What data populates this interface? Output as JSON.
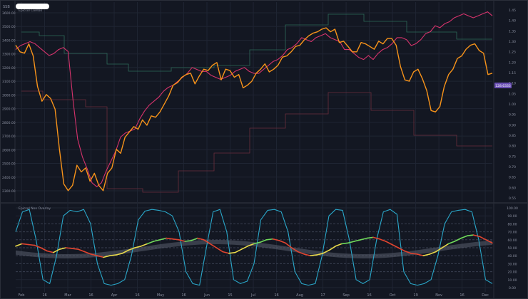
{
  "header": {
    "symbol": "SSB",
    "indicator_label": "Epicsol Combo"
  },
  "lower_panel": {
    "label": "Epicsol Non Overlay"
  },
  "price_label": "128.6333",
  "colors": {
    "background": "#131722",
    "grid": "#1f2533",
    "price": "#f7931a",
    "ratio": "#d6336c",
    "step_green": "#2e6b5a",
    "step_red": "#6b2e3c",
    "osc_cyan": "#2aa7c9",
    "osc_green": "#6fd95a",
    "osc_red": "#e0442f",
    "osc_yellow": "#e8d94a",
    "band": "#5a5f6e",
    "axis_text": "#8b90a0",
    "price_tag_bg": "#6a4fb3"
  },
  "chart_data": [
    {
      "type": "line",
      "title": "Epicsol Combo",
      "x_ticks": [
        "Feb",
        "16",
        "Mar",
        "16",
        "Apr",
        "16",
        "May",
        "16",
        "Jun",
        "15",
        "Jul",
        "16",
        "Aug",
        "17",
        "Sep",
        "16",
        "Oct",
        "19",
        "Nov",
        "16",
        "Dec"
      ],
      "y_left_ticks": [
        "3600.00",
        "3500.00",
        "3400.00",
        "3300.00",
        "3200.00",
        "3100.00",
        "3000.00",
        "2900.00",
        "2800.00",
        "2700.00",
        "2600.00",
        "2500.00",
        "2400.00",
        "2300.00"
      ],
      "y_right_ticks": [
        "1.45",
        "1.40",
        "1.35",
        "1.30",
        "1.25",
        "1.20",
        "1.15",
        "1.10",
        "1.05",
        "1.00",
        "0.95",
        "0.90",
        "0.85",
        "0.80",
        "0.75",
        "0.70",
        "0.65",
        "0.60",
        "0.55"
      ],
      "ylim_left": [
        2230,
        3660
      ],
      "series": [
        {
          "color": "#f7931a",
          "axis": "left",
          "values": [
            3380,
            3330,
            3320,
            3390,
            3300,
            3070,
            2960,
            3010,
            2980,
            2900,
            2600,
            2340,
            2290,
            2330,
            2480,
            2430,
            2460,
            2360,
            2420,
            2330,
            2290,
            2420,
            2460,
            2600,
            2570,
            2690,
            2730,
            2770,
            2750,
            2820,
            2780,
            2850,
            2840,
            2880,
            2940,
            3000,
            3080,
            3100,
            3140,
            3160,
            3170,
            3090,
            3150,
            3200,
            3190,
            3230,
            3250,
            3120,
            3200,
            3190,
            3140,
            3160,
            3060,
            3080,
            3110,
            3170,
            3200,
            3240,
            3180,
            3200,
            3230,
            3290,
            3300,
            3330,
            3370,
            3380,
            3420,
            3450,
            3470,
            3480,
            3500,
            3510,
            3480,
            3500,
            3400,
            3410,
            3370,
            3330,
            3330,
            3400,
            3390,
            3370,
            3350,
            3410,
            3390,
            3430,
            3430,
            3380,
            3220,
            3120,
            3110,
            3180,
            3200,
            3130,
            3040,
            2890,
            2880,
            2920,
            3070,
            3160,
            3200,
            3280,
            3300,
            3350,
            3380,
            3390,
            3340,
            3320,
            3160,
            3170
          ]
        },
        {
          "color": "#d6336c",
          "axis": "right",
          "values": [
            1.27,
            1.29,
            1.3,
            1.31,
            1.3,
            1.28,
            1.26,
            1.24,
            1.25,
            1.27,
            1.28,
            1.26,
            1.02,
            0.82,
            0.73,
            0.67,
            0.6,
            0.58,
            0.6,
            0.66,
            0.71,
            0.76,
            0.83,
            0.85,
            0.86,
            0.87,
            0.92,
            0.96,
            0.99,
            1.01,
            1.03,
            1.06,
            1.08,
            1.09,
            1.11,
            1.13,
            1.15,
            1.18,
            1.17,
            1.16,
            1.16,
            1.14,
            1.13,
            1.12,
            1.13,
            1.14,
            1.16,
            1.17,
            1.18,
            1.16,
            1.15,
            1.15,
            1.17,
            1.19,
            1.21,
            1.22,
            1.24,
            1.27,
            1.28,
            1.3,
            1.33,
            1.32,
            1.31,
            1.33,
            1.34,
            1.35,
            1.33,
            1.32,
            1.31,
            1.27,
            1.27,
            1.25,
            1.23,
            1.22,
            1.24,
            1.22,
            1.25,
            1.27,
            1.28,
            1.3,
            1.33,
            1.33,
            1.32,
            1.29,
            1.3,
            1.32,
            1.35,
            1.36,
            1.39,
            1.38,
            1.4,
            1.41,
            1.43,
            1.44,
            1.45,
            1.44,
            1.43,
            1.44,
            1.45,
            1.46,
            1.44
          ]
        }
      ]
    },
    {
      "type": "line",
      "title": "Epicsol Non Overlay",
      "y_ticks": [
        "100.00",
        "90.00",
        "80.00",
        "70.00",
        "60.00",
        "50.00",
        "40.00",
        "30.00",
        "20.00",
        "10.00",
        "0.00"
      ],
      "ylim": [
        0,
        100
      ],
      "series": [
        {
          "color": "#2aa7c9",
          "values": [
            70,
            95,
            98,
            60,
            10,
            5,
            40,
            90,
            97,
            95,
            98,
            80,
            30,
            5,
            3,
            5,
            10,
            40,
            85,
            96,
            98,
            97,
            95,
            90,
            70,
            20,
            5,
            3,
            50,
            95,
            98,
            70,
            10,
            5,
            8,
            30,
            85,
            97,
            98,
            95,
            70,
            20,
            5,
            3,
            5,
            40,
            90,
            98,
            97,
            60,
            10,
            5,
            10,
            60,
            95,
            98,
            92,
            20,
            5,
            3,
            5,
            10,
            40,
            80,
            95,
            97,
            98,
            95,
            60,
            10,
            5
          ]
        },
        {
          "color": "#6fd95a",
          "values": [
            52,
            55,
            54,
            53,
            50,
            46,
            44,
            48,
            50,
            49,
            48,
            45,
            42,
            40,
            38,
            40,
            41,
            43,
            47,
            50,
            52,
            55,
            58,
            60,
            62,
            61,
            60,
            58,
            59,
            62,
            60,
            55,
            50,
            45,
            43,
            44,
            48,
            52,
            55,
            57,
            60,
            61,
            59,
            56,
            50,
            45,
            42,
            40,
            41,
            43,
            47,
            52,
            55,
            56,
            58,
            60,
            62,
            63,
            61,
            58,
            54,
            50,
            46,
            43,
            42,
            40,
            42,
            45,
            50,
            55,
            58,
            62,
            65,
            66,
            64,
            60,
            56
          ]
        }
      ]
    }
  ]
}
